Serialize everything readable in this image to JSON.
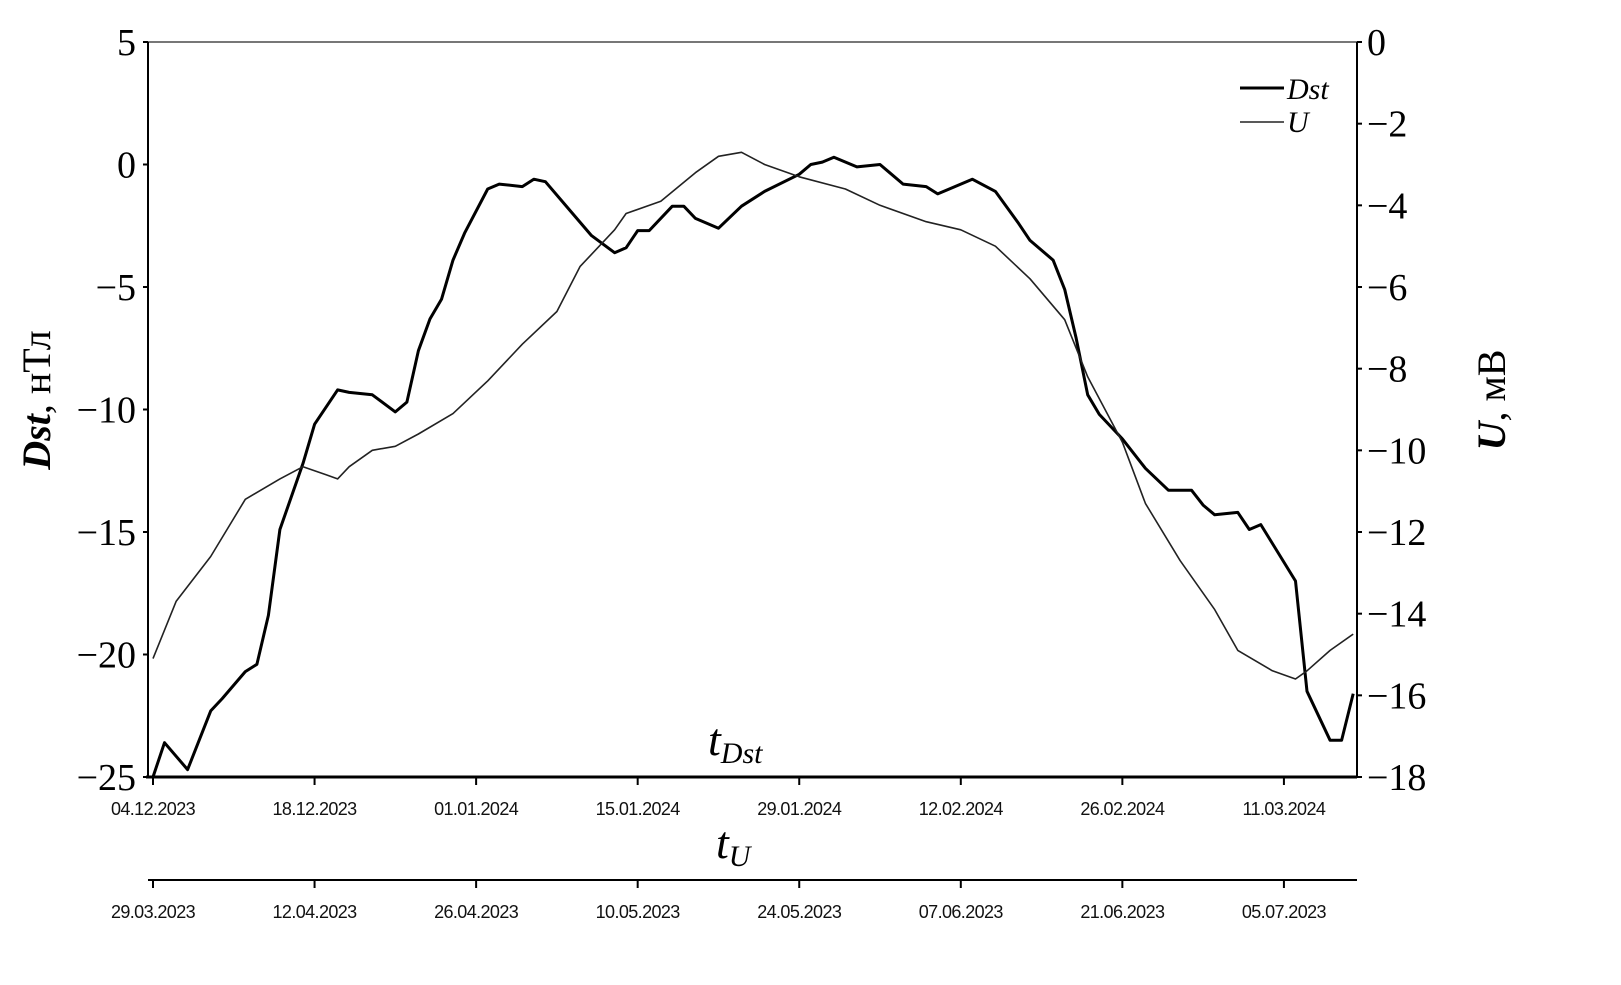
{
  "chart_data": {
    "type": "line",
    "legend": {
      "placement": "top-right",
      "entries": [
        "Dst",
        "U"
      ]
    },
    "y_left": {
      "label_var": "Dst",
      "label_unit": ", нТл",
      "ylim": [
        -25,
        5
      ],
      "ticks": [
        "5",
        "0",
        "−5",
        "−10",
        "−15",
        "−20",
        "−25"
      ],
      "tick_values": [
        5,
        0,
        -5,
        -10,
        -15,
        -20,
        -25
      ]
    },
    "y_right": {
      "label_var": "U",
      "label_unit": ", мВ",
      "ylim": [
        -18,
        0
      ],
      "ticks": [
        "0",
        "−2",
        "−4",
        "−6",
        "−8",
        "−10",
        "−12",
        "−14",
        "−16",
        "−18"
      ],
      "tick_values": [
        0,
        -2,
        -4,
        -6,
        -8,
        -10,
        -12,
        -14,
        -16,
        -18
      ]
    },
    "x_dst": {
      "label_main": "t",
      "label_sub": "Dst",
      "ticks": [
        "04.12.2023",
        "18.12.2023",
        "01.01.2024",
        "15.01.2024",
        "29.01.2024",
        "12.02.2024",
        "26.02.2024",
        "11.03.2024"
      ],
      "start": "2023-12-04"
    },
    "x_u": {
      "label_main": "t",
      "label_sub": "U",
      "ticks": [
        "29.03.2023",
        "12.04.2023",
        "26.04.2023",
        "10.05.2023",
        "24.05.2023",
        "07.06.2023",
        "21.06.2023",
        "05.07.2023"
      ],
      "start": "2023-03-29"
    },
    "grid": false,
    "series": [
      {
        "name": "Dst",
        "axis": "left",
        "color": "#000000",
        "x": [
          "2023-12-04",
          "2023-12-05",
          "2023-12-07",
          "2023-12-09",
          "2023-12-10",
          "2023-12-12",
          "2023-12-13",
          "2023-12-14",
          "2023-12-15",
          "2023-12-17",
          "2023-12-18",
          "2023-12-20",
          "2023-12-21",
          "2023-12-23",
          "2023-12-25",
          "2023-12-26",
          "2023-12-27",
          "2023-12-28",
          "2023-12-29",
          "2023-12-30",
          "2023-12-31",
          "2024-01-02",
          "2024-01-03",
          "2024-01-05",
          "2024-01-06",
          "2024-01-07",
          "2024-01-09",
          "2024-01-11",
          "2024-01-13",
          "2024-01-14",
          "2024-01-15",
          "2024-01-16",
          "2024-01-18",
          "2024-01-19",
          "2024-01-20",
          "2024-01-22",
          "2024-01-24",
          "2024-01-26",
          "2024-01-29",
          "2024-01-30",
          "2024-01-31",
          "2024-02-01",
          "2024-02-03",
          "2024-02-05",
          "2024-02-07",
          "2024-02-09",
          "2024-02-10",
          "2024-02-11",
          "2024-02-13",
          "2024-02-15",
          "2024-02-17",
          "2024-02-18",
          "2024-02-20",
          "2024-02-21",
          "2024-02-22",
          "2024-02-23",
          "2024-02-24",
          "2024-02-26",
          "2024-02-28",
          "2024-03-01",
          "2024-03-03",
          "2024-03-04",
          "2024-03-05",
          "2024-03-07",
          "2024-03-08",
          "2024-03-09",
          "2024-03-12",
          "2024-03-13",
          "2024-03-15",
          "2024-03-16",
          "2024-03-17"
        ],
        "y": [
          -25,
          -23.6,
          -24.7,
          -22.3,
          -21.8,
          -20.7,
          -20.4,
          -18.4,
          -14.9,
          -12.2,
          -10.6,
          -9.2,
          -9.3,
          -9.4,
          -10.1,
          -9.7,
          -7.6,
          -6.3,
          -5.5,
          -3.9,
          -2.8,
          -1.0,
          -0.8,
          -0.9,
          -0.6,
          -0.7,
          -1.8,
          -2.9,
          -3.6,
          -3.4,
          -2.7,
          -2.7,
          -1.7,
          -1.7,
          -2.2,
          -2.6,
          -1.7,
          -1.1,
          -0.4,
          0,
          0.1,
          0.3,
          -0.1,
          0,
          -0.8,
          -0.9,
          -1.2,
          -1.0,
          -0.6,
          -1.1,
          -2.4,
          -3.1,
          -3.9,
          -5.1,
          -7.1,
          -9.4,
          -10.2,
          -11.2,
          -12.4,
          -13.3,
          -13.3,
          -13.9,
          -14.3,
          -14.2,
          -14.9,
          -14.7,
          -17.0,
          -21.5,
          -23.5,
          -23.5,
          -21.6
        ]
      },
      {
        "name": "U",
        "axis": "right",
        "color": "#222222",
        "x": [
          "2023-03-29",
          "2023-03-31",
          "2023-04-03",
          "2023-04-06",
          "2023-04-09",
          "2023-04-11",
          "2023-04-13",
          "2023-04-14",
          "2023-04-15",
          "2023-04-17",
          "2023-04-19",
          "2023-04-21",
          "2023-04-24",
          "2023-04-27",
          "2023-04-30",
          "2023-05-03",
          "2023-05-05",
          "2023-05-08",
          "2023-05-09",
          "2023-05-12",
          "2023-05-15",
          "2023-05-17",
          "2023-05-19",
          "2023-05-21",
          "2023-05-24",
          "2023-05-28",
          "2023-05-31",
          "2023-06-04",
          "2023-06-07",
          "2023-06-10",
          "2023-06-13",
          "2023-06-16",
          "2023-06-18",
          "2023-06-21",
          "2023-06-23",
          "2023-06-26",
          "2023-06-29",
          "2023-07-01",
          "2023-07-04",
          "2023-07-06",
          "2023-07-07",
          "2023-07-09",
          "2023-07-11"
        ],
        "y": [
          -15.1,
          -13.7,
          -12.6,
          -11.2,
          -10.7,
          -10.4,
          -10.6,
          -10.7,
          -10.4,
          -10.0,
          -9.9,
          -9.6,
          -9.1,
          -8.3,
          -7.4,
          -6.6,
          -5.5,
          -4.6,
          -4.2,
          -3.9,
          -3.2,
          -2.8,
          -2.7,
          -3.0,
          -3.3,
          -3.6,
          -4.0,
          -4.4,
          -4.6,
          -5.0,
          -5.8,
          -6.8,
          -8.2,
          -9.8,
          -11.3,
          -12.7,
          -13.9,
          -14.9,
          -15.4,
          -15.6,
          -15.4,
          -14.9,
          -14.5
        ]
      }
    ]
  }
}
